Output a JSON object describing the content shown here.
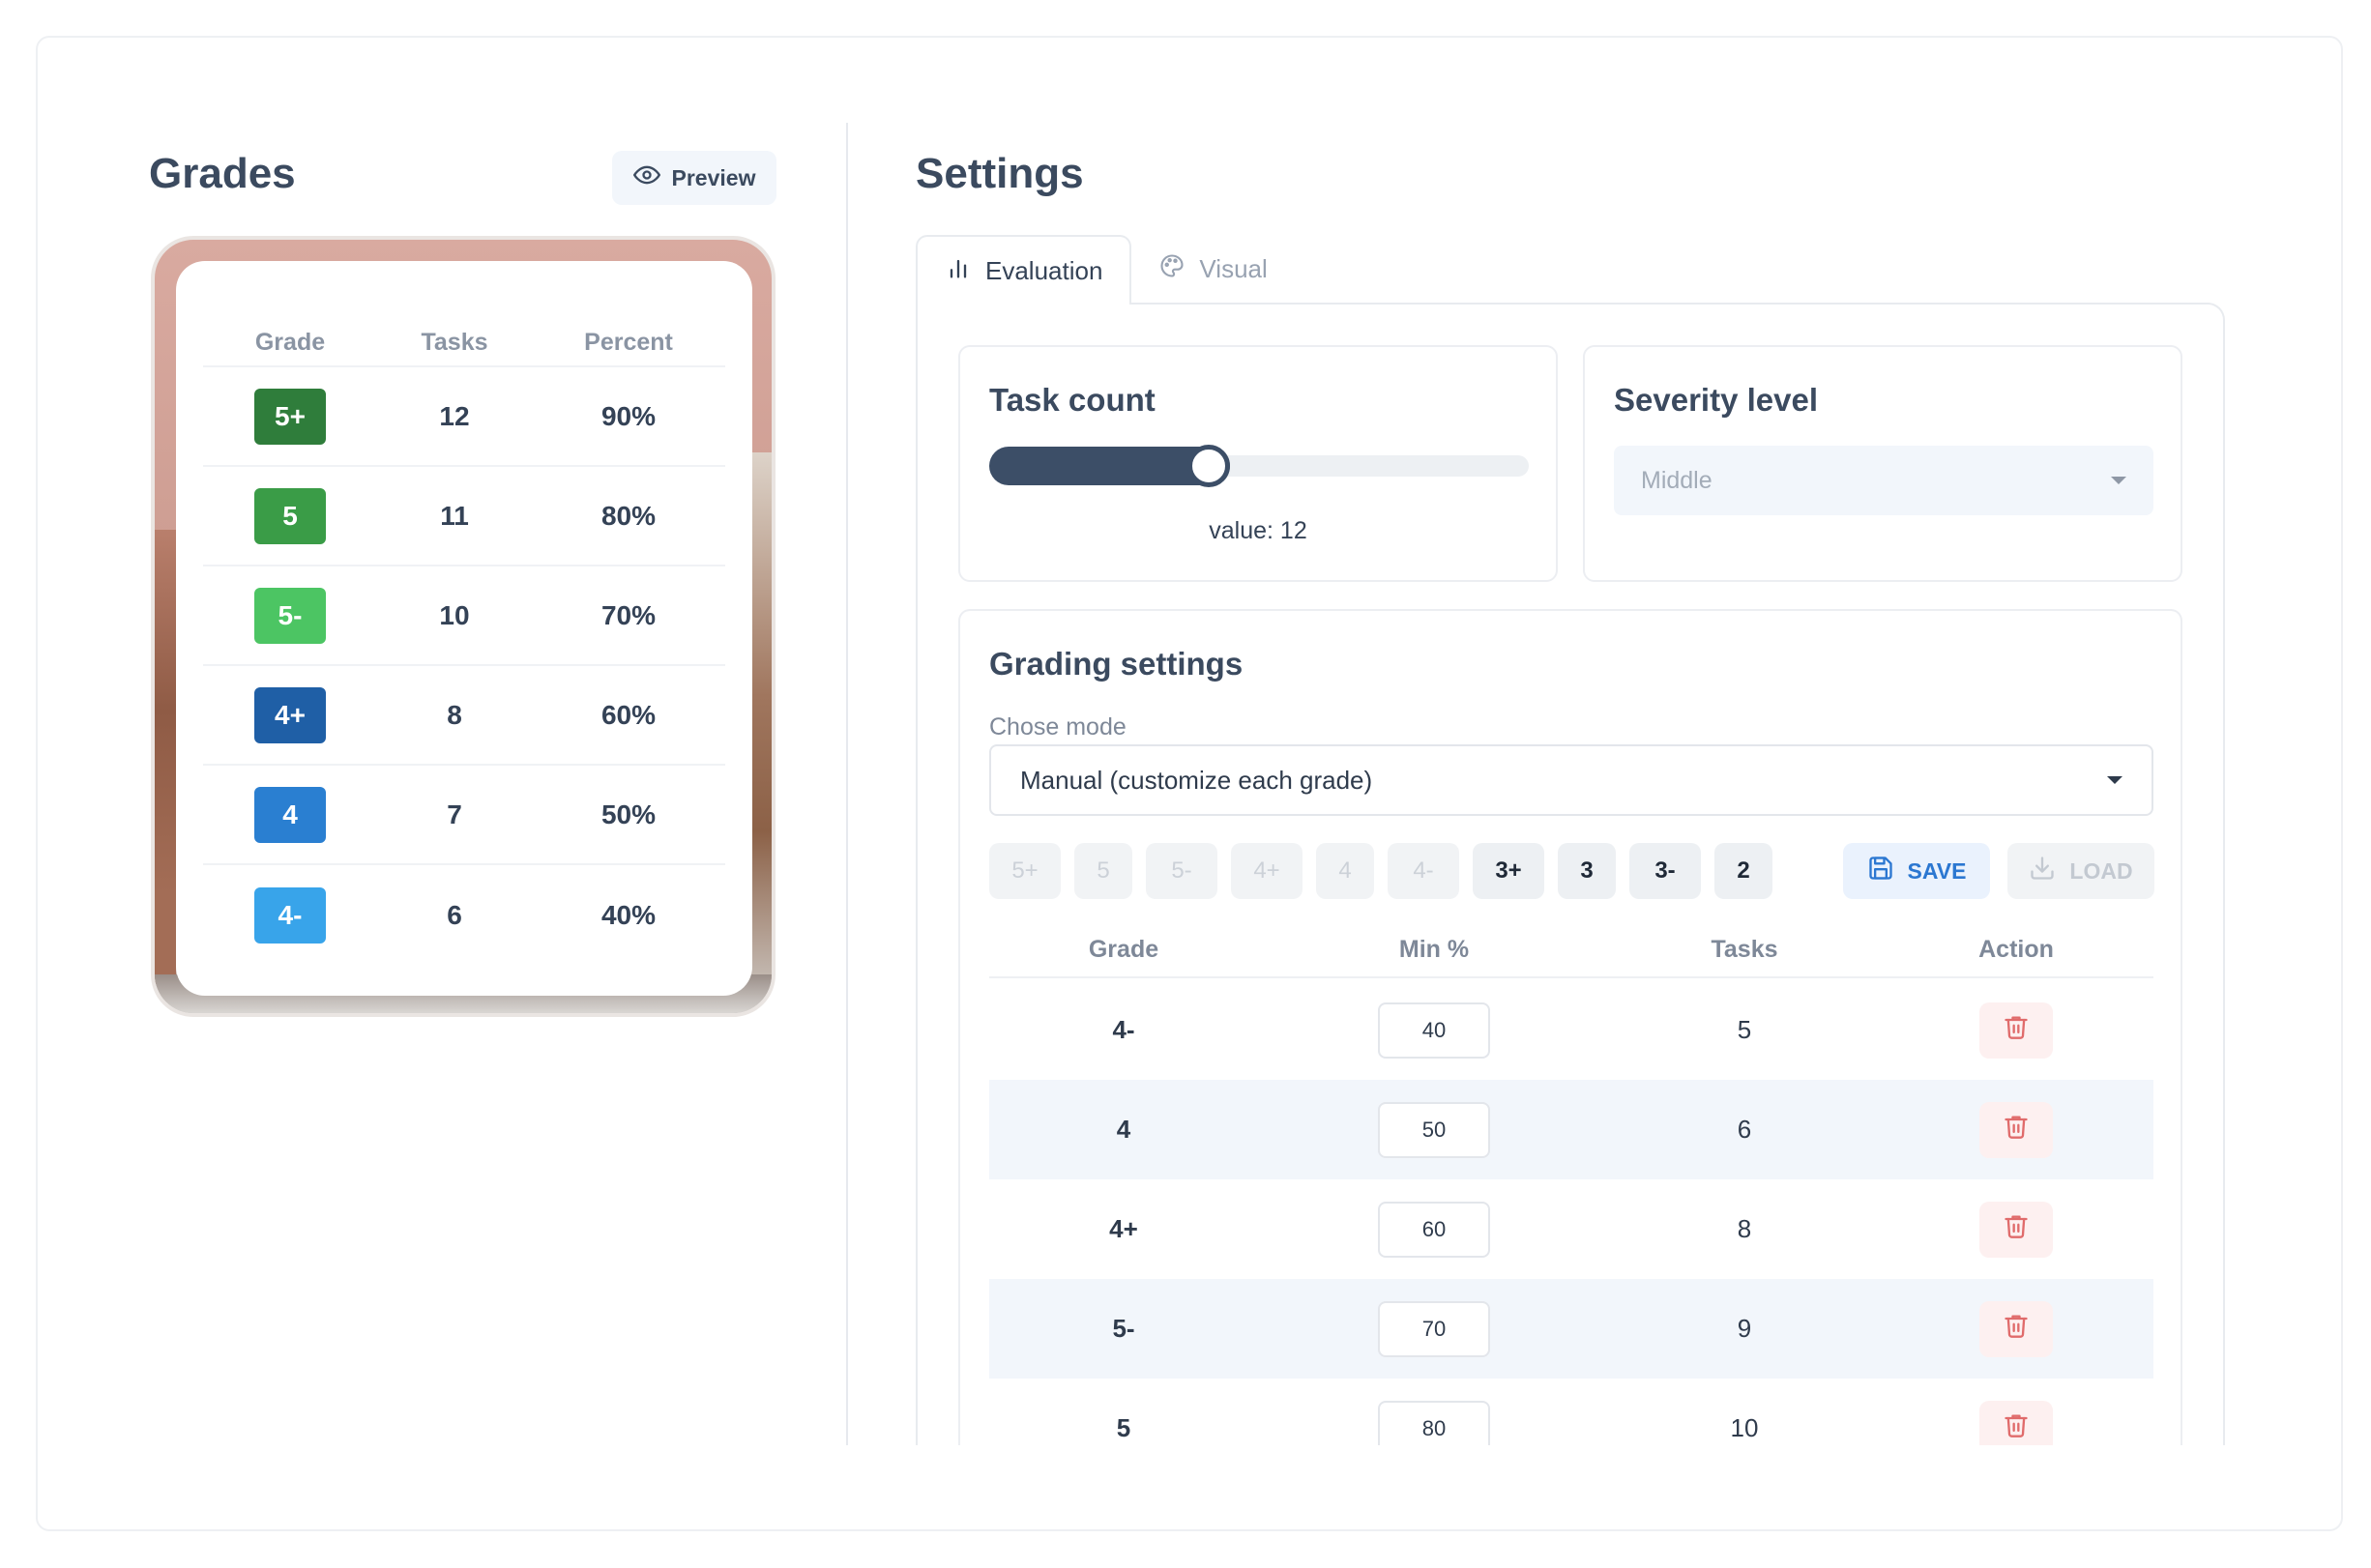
{
  "left": {
    "title": "Grades",
    "preview_label": "Preview",
    "table": {
      "headers": [
        "Grade",
        "Tasks",
        "Percent"
      ],
      "rows": [
        {
          "grade": "5+",
          "tasks": "12",
          "percent": "90%",
          "color": "#2f7d3b"
        },
        {
          "grade": "5",
          "tasks": "11",
          "percent": "80%",
          "color": "#3a9c47"
        },
        {
          "grade": "5-",
          "tasks": "10",
          "percent": "70%",
          "color": "#4cc563"
        },
        {
          "grade": "4+",
          "tasks": "8",
          "percent": "60%",
          "color": "#1f5fa6"
        },
        {
          "grade": "4",
          "tasks": "7",
          "percent": "50%",
          "color": "#2a7fd1"
        },
        {
          "grade": "4-",
          "tasks": "6",
          "percent": "40%",
          "color": "#38a4ea"
        }
      ]
    }
  },
  "right": {
    "title": "Settings",
    "tabs": [
      {
        "label": "Evaluation",
        "icon": "bar-chart-icon",
        "active": true
      },
      {
        "label": "Visual",
        "icon": "palette-icon",
        "active": false
      }
    ],
    "task_count": {
      "title": "Task count",
      "value_label": "value: 12",
      "fill_fraction": 0.447
    },
    "severity": {
      "title": "Severity level",
      "selected": "Middle"
    },
    "grading": {
      "title": "Grading settings",
      "mode_label": "Chose mode",
      "mode_selected": "Manual (customize each grade)",
      "grade_buttons": [
        {
          "label": "5+",
          "enabled": false
        },
        {
          "label": "5",
          "enabled": false
        },
        {
          "label": "5-",
          "enabled": false
        },
        {
          "label": "4+",
          "enabled": false
        },
        {
          "label": "4",
          "enabled": false
        },
        {
          "label": "4-",
          "enabled": false
        },
        {
          "label": "3+",
          "enabled": true
        },
        {
          "label": "3",
          "enabled": true
        },
        {
          "label": "3-",
          "enabled": true
        },
        {
          "label": "2",
          "enabled": true
        }
      ],
      "save_label": "SAVE",
      "load_label": "LOAD",
      "headers": [
        "Grade",
        "Min %",
        "Tasks",
        "Action"
      ],
      "rows": [
        {
          "grade": "4-",
          "min": "40",
          "tasks": "5"
        },
        {
          "grade": "4",
          "min": "50",
          "tasks": "6"
        },
        {
          "grade": "4+",
          "min": "60",
          "tasks": "8"
        },
        {
          "grade": "5-",
          "min": "70",
          "tasks": "9"
        },
        {
          "grade": "5",
          "min": "80",
          "tasks": "10"
        }
      ]
    }
  },
  "colors": {
    "accent_dark": "#3c4e67",
    "save_blue": "#2b77d1",
    "delete_red": "#e06b6b",
    "row_alt": "#f2f6fb"
  }
}
